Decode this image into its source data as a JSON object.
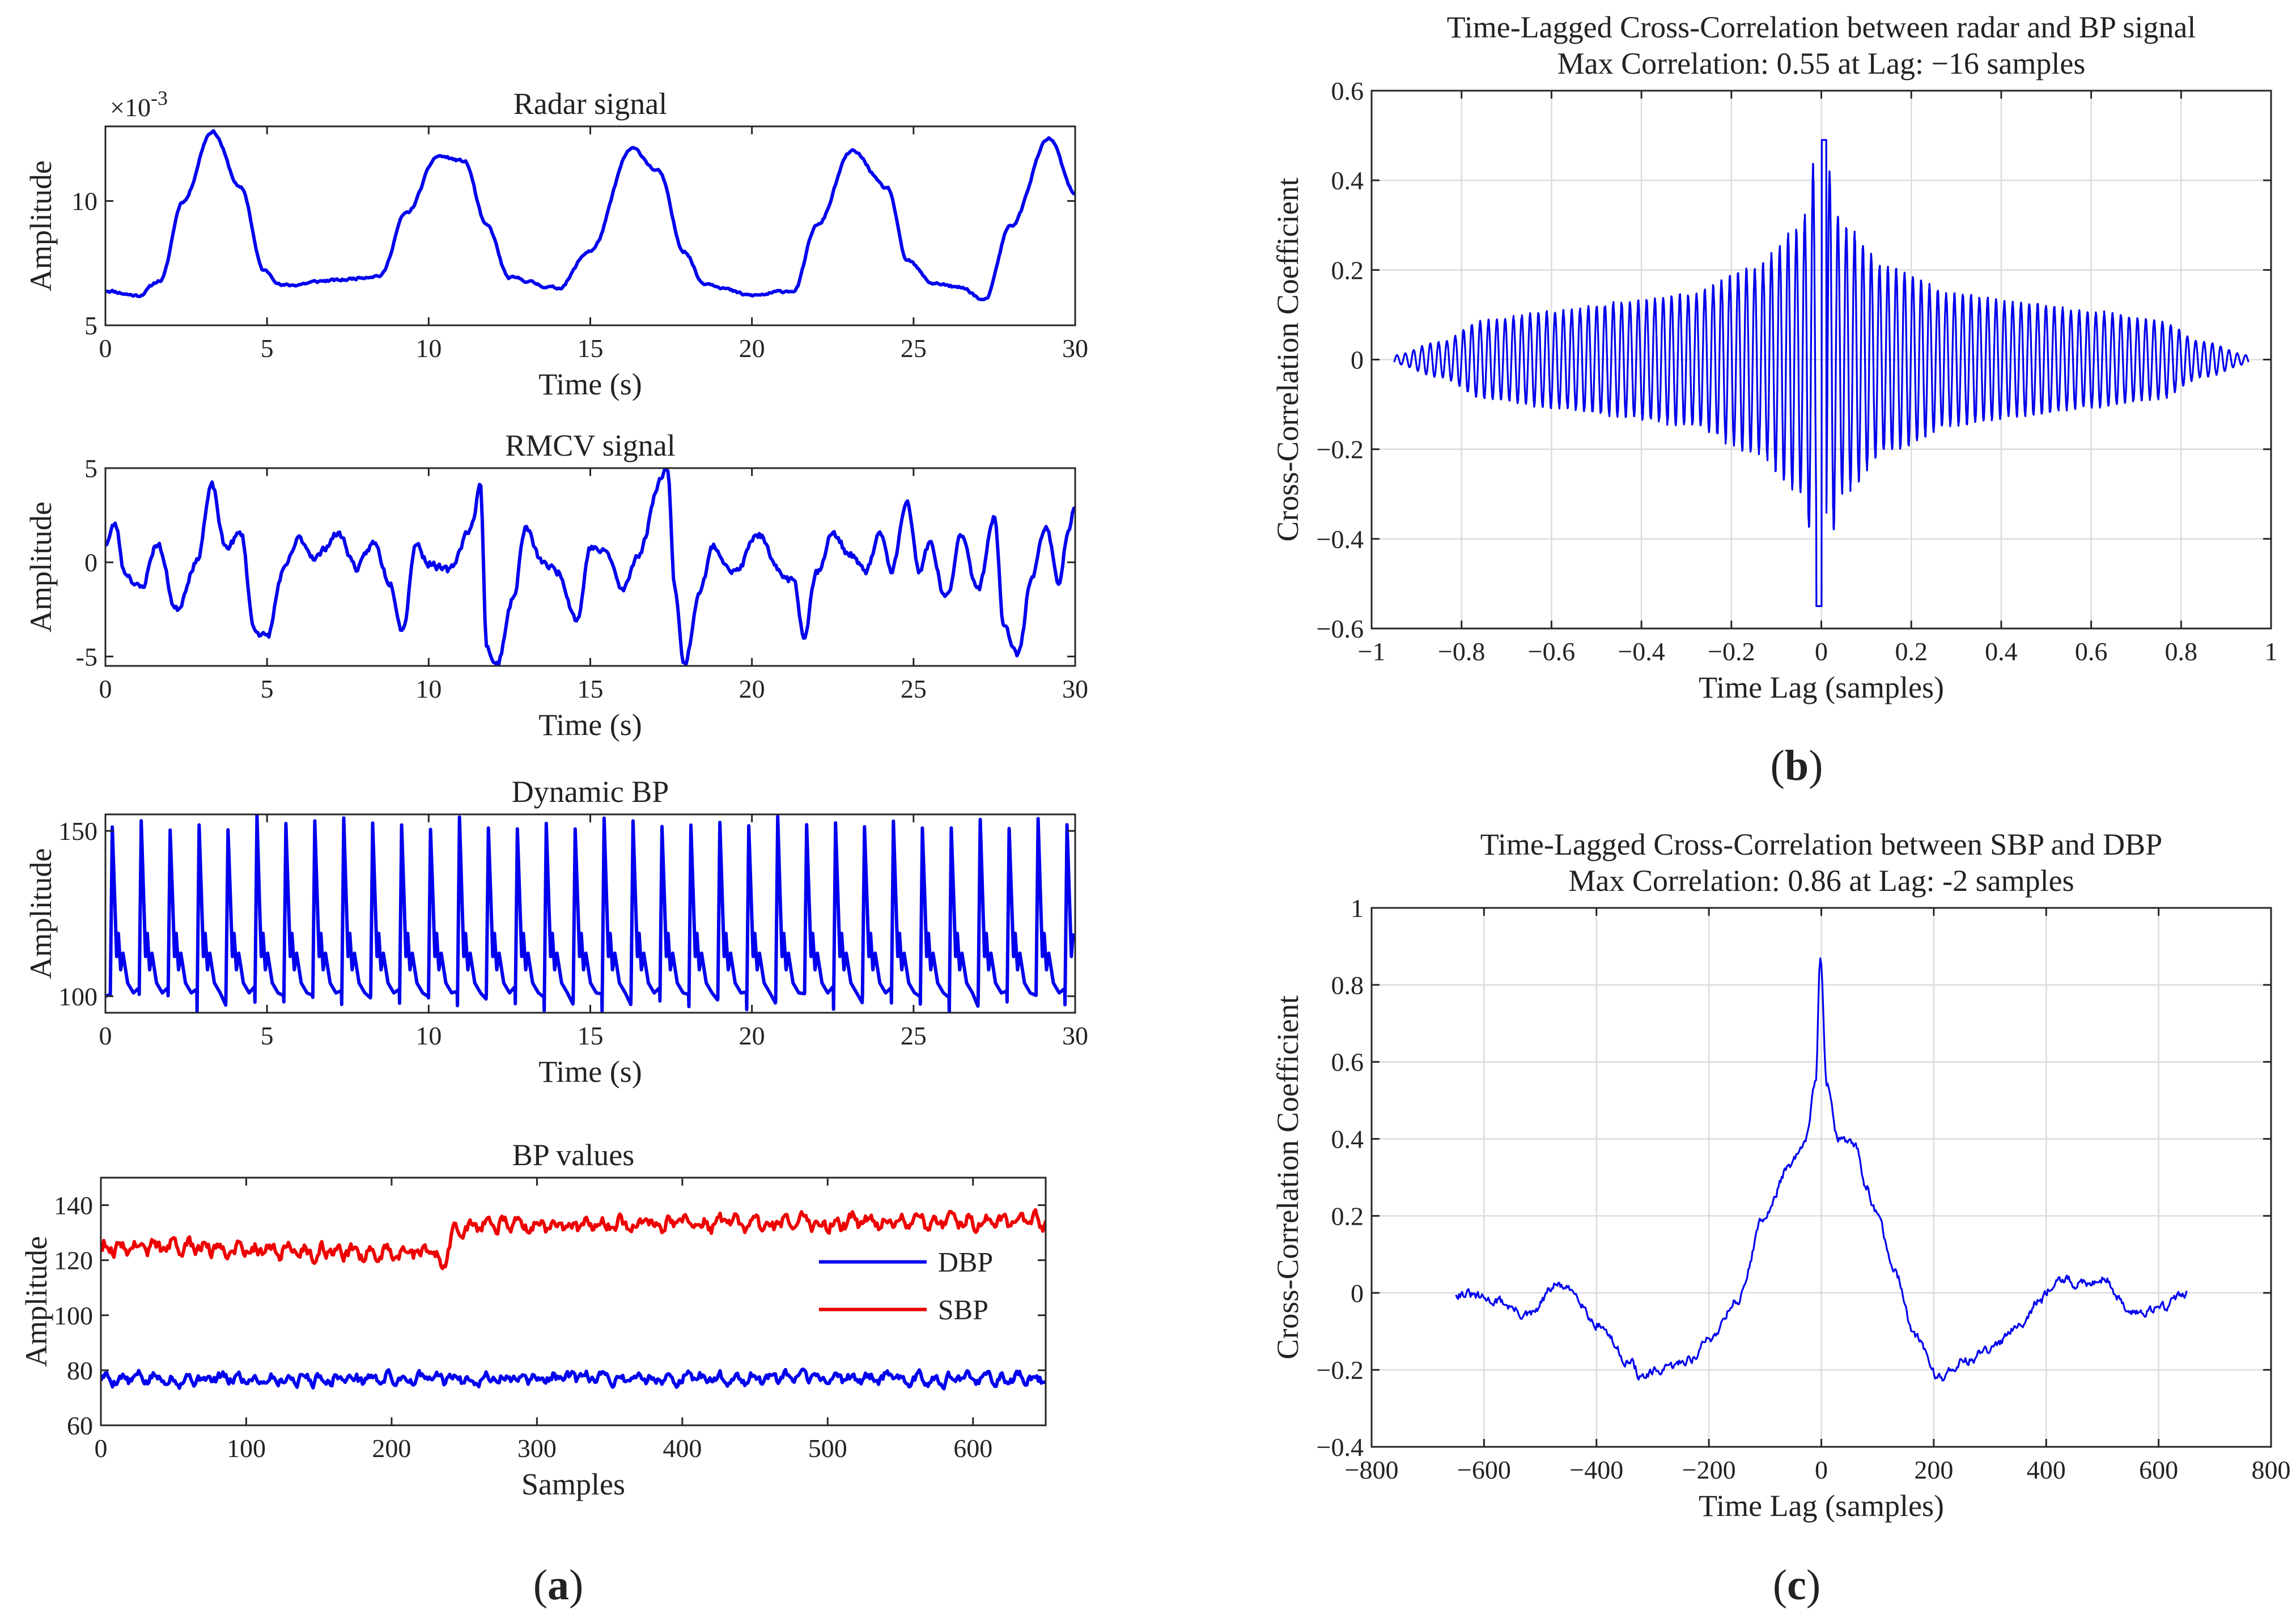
{
  "colors": {
    "blue": "#0000ee",
    "red": "#ee0000",
    "axis": "#262626",
    "grid": "#dcdcdc"
  },
  "panel_labels": {
    "a": "a",
    "b": "b",
    "c": "c"
  },
  "chart_data": [
    {
      "id": "radar",
      "type": "line",
      "title": "Radar signal",
      "xlabel": "Time (s)",
      "ylabel": "Amplitude",
      "exponent_prefix": "×10",
      "exponent_value": "-3",
      "xlim": [
        0,
        30
      ],
      "ylim": [
        5,
        13
      ],
      "xticks": [
        0,
        5,
        10,
        15,
        20,
        25,
        30
      ],
      "yticks": [
        5,
        10
      ],
      "grid": false,
      "series": [
        {
          "name": "Radar",
          "color": "#0000ee",
          "knots": [
            [
              0,
              6.4
            ],
            [
              1,
              6.2
            ],
            [
              1.7,
              6.8
            ],
            [
              2.4,
              10
            ],
            [
              3.3,
              12.8
            ],
            [
              4.2,
              10.5
            ],
            [
              4.9,
              7.2
            ],
            [
              5.5,
              6.6
            ],
            [
              7,
              6.8
            ],
            [
              8.5,
              7
            ],
            [
              9.3,
              9.5
            ],
            [
              10.3,
              11.8
            ],
            [
              11.1,
              11.6
            ],
            [
              11.8,
              9
            ],
            [
              12.5,
              6.9
            ],
            [
              14,
              6.5
            ],
            [
              15,
              8
            ],
            [
              16.3,
              12.1
            ],
            [
              17.1,
              11.2
            ],
            [
              17.9,
              8
            ],
            [
              18.5,
              6.7
            ],
            [
              20,
              6.2
            ],
            [
              21.3,
              6.4
            ],
            [
              22,
              9
            ],
            [
              23.1,
              12
            ],
            [
              24.2,
              10.5
            ],
            [
              24.8,
              7.6
            ],
            [
              25.6,
              6.7
            ],
            [
              26.5,
              6.5
            ],
            [
              27.2,
              6
            ],
            [
              28,
              9
            ],
            [
              29.2,
              12.5
            ],
            [
              30,
              10.3
            ]
          ],
          "noise": 0.12,
          "noise_seed": 11
        }
      ]
    },
    {
      "id": "rmcv",
      "type": "line",
      "title": "RMCV signal",
      "xlabel": "Time (s)",
      "ylabel": "Amplitude",
      "xlim": [
        0,
        30
      ],
      "ylim": [
        -5.5,
        5
      ],
      "xticks": [
        0,
        5,
        10,
        15,
        20,
        25,
        30
      ],
      "yticks": [
        -5,
        0,
        5
      ],
      "grid": false,
      "series": [
        {
          "name": "RMCV",
          "color": "#0000ee",
          "knots": [
            [
              0,
              1
            ],
            [
              0.3,
              2
            ],
            [
              0.6,
              -0.5
            ],
            [
              1.1,
              -1.4
            ],
            [
              1.6,
              1
            ],
            [
              2.2,
              -2.5
            ],
            [
              2.8,
              0
            ],
            [
              3.3,
              4
            ],
            [
              3.7,
              0.8
            ],
            [
              4.2,
              1.5
            ],
            [
              4.6,
              -3.5
            ],
            [
              5,
              -4
            ],
            [
              5.5,
              -0.5
            ],
            [
              6,
              1.2
            ],
            [
              6.5,
              0.3
            ],
            [
              7.2,
              1.5
            ],
            [
              7.8,
              -0.3
            ],
            [
              8.3,
              1
            ],
            [
              8.8,
              -1
            ],
            [
              9.2,
              -3.5
            ],
            [
              9.6,
              1
            ],
            [
              10,
              0
            ],
            [
              10.6,
              -0.5
            ],
            [
              11.3,
              1.8
            ],
            [
              11.6,
              4
            ],
            [
              11.8,
              -4.5
            ],
            [
              12.1,
              -5.5
            ],
            [
              12.6,
              -2
            ],
            [
              13,
              1.8
            ],
            [
              13.5,
              0
            ],
            [
              14,
              -0.5
            ],
            [
              14.6,
              -3
            ],
            [
              15,
              0.8
            ],
            [
              15.5,
              0.5
            ],
            [
              16,
              -1.5
            ],
            [
              16.5,
              0.5
            ],
            [
              17.2,
              4.5
            ],
            [
              17.4,
              5
            ],
            [
              17.6,
              -1
            ],
            [
              17.9,
              -5.5
            ],
            [
              18.4,
              -1.5
            ],
            [
              18.8,
              0.8
            ],
            [
              19.5,
              -0.5
            ],
            [
              20.2,
              1.5
            ],
            [
              20.8,
              -0.5
            ],
            [
              21.3,
              -1
            ],
            [
              21.6,
              -3.8
            ],
            [
              22,
              -0.5
            ],
            [
              22.5,
              1.5
            ],
            [
              23,
              0.5
            ],
            [
              23.5,
              -0.5
            ],
            [
              24,
              1.5
            ],
            [
              24.3,
              -0.5
            ],
            [
              24.8,
              3
            ],
            [
              25.2,
              -0.5
            ],
            [
              25.5,
              1
            ],
            [
              26,
              -2
            ],
            [
              26.5,
              1.5
            ],
            [
              27,
              -1.5
            ],
            [
              27.5,
              2.5
            ],
            [
              27.8,
              -3.5
            ],
            [
              28.2,
              -5
            ],
            [
              28.7,
              -0.5
            ],
            [
              29.1,
              1.8
            ],
            [
              29.5,
              -1
            ],
            [
              29.8,
              1.8
            ],
            [
              30,
              3
            ]
          ],
          "noise": 0.45,
          "noise_seed": 23
        }
      ]
    },
    {
      "id": "dynbp",
      "type": "line",
      "title": "Dynamic BP",
      "xlabel": "Time (s)",
      "ylabel": "Amplitude",
      "xlim": [
        0,
        30
      ],
      "ylim": [
        95,
        155
      ],
      "xticks": [
        0,
        5,
        10,
        15,
        20,
        25,
        30
      ],
      "yticks": [
        100,
        150
      ],
      "grid": false,
      "series": [
        {
          "name": "Dynamic BP",
          "color": "#0000ee",
          "beats": {
            "start": 0.15,
            "period": 0.895,
            "count": 34,
            "peak": [
              150,
              155
            ],
            "trough": [
              95,
              101
            ]
          }
        }
      ]
    },
    {
      "id": "bpvalues",
      "type": "line",
      "title": "BP values",
      "xlabel": "Samples",
      "ylabel": "Amplitude",
      "xlim": [
        0,
        650
      ],
      "ylim": [
        60,
        150
      ],
      "xticks": [
        0,
        100,
        200,
        300,
        400,
        500,
        600
      ],
      "yticks": [
        60,
        80,
        100,
        120,
        140
      ],
      "grid": false,
      "legend_position": "right",
      "series": [
        {
          "name": "DBP",
          "color": "#0000ee",
          "base": [
            [
              0,
              77
            ],
            [
              650,
              77
            ]
          ],
          "noise": 3.5,
          "noise_seed": 5
        },
        {
          "name": "SBP",
          "color": "#ee0000",
          "base": [
            [
              0,
              125
            ],
            [
              225,
              123
            ],
            [
              235,
              119
            ],
            [
              245,
              131
            ],
            [
              260,
              133
            ],
            [
              650,
              134
            ]
          ],
          "noise": 4.5,
          "noise_seed": 9
        }
      ]
    },
    {
      "id": "xcorr_radar_bp",
      "type": "line",
      "title": "Time-Lagged Cross-Correlation between radar and BP signal",
      "subtitle": "Max Correlation: 0.55 at Lag: −16 samples",
      "xlabel": "Time Lag (samples)",
      "ylabel": "Cross-Correlation Coefficient",
      "xlim": [
        -1,
        1
      ],
      "ylim": [
        -0.6,
        0.6
      ],
      "xticks": [
        -1,
        -0.8,
        -0.6,
        -0.4,
        -0.2,
        0,
        0.2,
        0.4,
        0.6,
        0.8,
        1
      ],
      "xticklabels": [
        "−1",
        "−0.8",
        "−0.6",
        "−0.4",
        "−0.2",
        "0",
        "0.2",
        "0.4",
        "0.6",
        "0.8",
        "1"
      ],
      "yticks": [
        -0.6,
        -0.4,
        -0.2,
        0,
        0.2,
        0.4,
        0.6
      ],
      "grid": true,
      "series": [
        {
          "name": "xcorr",
          "color": "#0000ee",
          "oscillation": {
            "range": [
              -0.95,
              0.95
            ],
            "period": 0.0185,
            "peak": 0.49,
            "trough": -0.55,
            "envelope": [
              [
                -0.95,
                0.01
              ],
              [
                -0.85,
                0.04
              ],
              [
                -0.75,
                0.09
              ],
              [
                -0.6,
                0.11
              ],
              [
                -0.45,
                0.13
              ],
              [
                -0.3,
                0.15
              ],
              [
                -0.15,
                0.21
              ],
              [
                -0.05,
                0.3
              ],
              [
                0,
                0.5
              ],
              [
                0.05,
                0.3
              ],
              [
                0.15,
                0.21
              ],
              [
                0.3,
                0.15
              ],
              [
                0.45,
                0.13
              ],
              [
                0.6,
                0.11
              ],
              [
                0.75,
                0.09
              ],
              [
                0.85,
                0.04
              ],
              [
                0.95,
                0.01
              ]
            ]
          }
        }
      ]
    },
    {
      "id": "xcorr_sbp_dbp",
      "type": "line",
      "title": "Time-Lagged Cross-Correlation between SBP and DBP",
      "subtitle": "Max Correlation: 0.86 at Lag: -2 samples",
      "xlabel": "Time Lag (samples)",
      "ylabel": "Cross-Correlation Coefficient",
      "xlim": [
        -800,
        800
      ],
      "ylim": [
        -0.4,
        1
      ],
      "xticks": [
        -800,
        -600,
        -400,
        -200,
        0,
        200,
        400,
        600,
        800
      ],
      "xticklabels": [
        "−800",
        "−600",
        "−400",
        "−200",
        "0",
        "200",
        "400",
        "600",
        "800"
      ],
      "yticks": [
        -0.4,
        -0.2,
        0,
        0.2,
        0.4,
        0.6,
        0.8,
        1
      ],
      "grid": true,
      "series": [
        {
          "name": "xcorr",
          "color": "#0000ee",
          "knots": [
            [
              -650,
              0
            ],
            [
              -580,
              -0.02
            ],
            [
              -520,
              -0.06
            ],
            [
              -470,
              0.02
            ],
            [
              -440,
              0
            ],
            [
              -400,
              -0.08
            ],
            [
              -340,
              -0.18
            ],
            [
              -320,
              -0.22
            ],
            [
              -280,
              -0.2
            ],
            [
              -230,
              -0.17
            ],
            [
              -200,
              -0.12
            ],
            [
              -150,
              -0.02
            ],
            [
              -100,
              0.2
            ],
            [
              -60,
              0.32
            ],
            [
              -30,
              0.38
            ],
            [
              -10,
              0.55
            ],
            [
              -2,
              0.86
            ],
            [
              10,
              0.55
            ],
            [
              30,
              0.4
            ],
            [
              60,
              0.38
            ],
            [
              80,
              0.28
            ],
            [
              100,
              0.2
            ],
            [
              130,
              0.05
            ],
            [
              170,
              -0.12
            ],
            [
              210,
              -0.22
            ],
            [
              250,
              -0.18
            ],
            [
              300,
              -0.15
            ],
            [
              350,
              -0.08
            ],
            [
              390,
              -0.02
            ],
            [
              420,
              0.04
            ],
            [
              460,
              0.02
            ],
            [
              500,
              0.04
            ],
            [
              550,
              -0.05
            ],
            [
              600,
              -0.04
            ],
            [
              650,
              0
            ]
          ],
          "noise": 0.025,
          "noise_seed": 31
        }
      ]
    }
  ]
}
